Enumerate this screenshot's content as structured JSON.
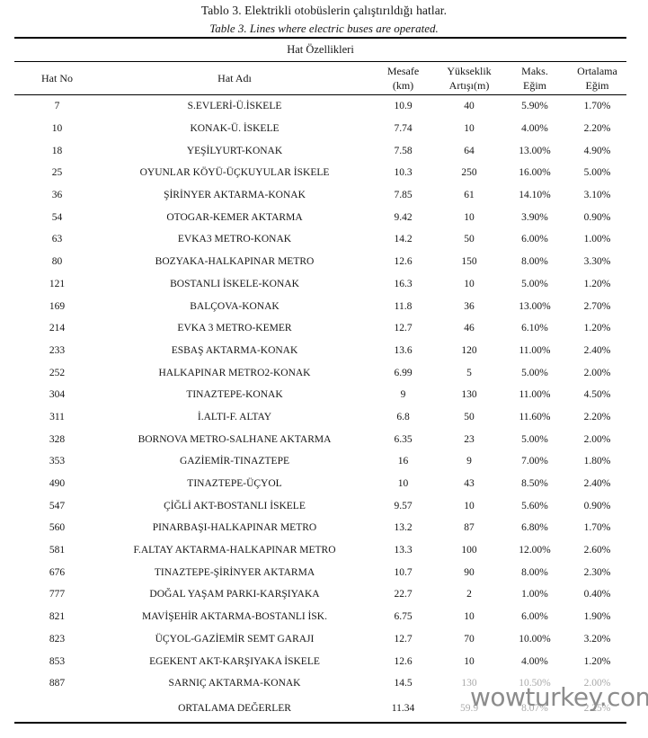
{
  "caption": {
    "title_tr": "Tablo 3. Elektrikli otobüslerin çalıştırıldığı hatlar.",
    "title_en": "Table 3. Lines where electric buses are operated."
  },
  "table": {
    "group_header": "Hat Özellikleri",
    "columns": [
      {
        "line1": "Hat No",
        "line2": ""
      },
      {
        "line1": "Hat Adı",
        "line2": ""
      },
      {
        "line1": "Mesafe",
        "line2": "(km)"
      },
      {
        "line1": "Yükseklik",
        "line2": "Artışı(m)"
      },
      {
        "line1": "Maks.",
        "line2": "Eğim"
      },
      {
        "line1": "Ortalama",
        "line2": "Eğim"
      }
    ],
    "rows": [
      [
        "7",
        "S.EVLERİ-Ü.İSKELE",
        "10.9",
        "40",
        "5.90%",
        "1.70%"
      ],
      [
        "10",
        "KONAK-Ü. İSKELE",
        "7.74",
        "10",
        "4.00%",
        "2.20%"
      ],
      [
        "18",
        "YEŞİLYURT-KONAK",
        "7.58",
        "64",
        "13.00%",
        "4.90%"
      ],
      [
        "25",
        "OYUNLAR KÖYÜ-ÜÇKUYULAR İSKELE",
        "10.3",
        "250",
        "16.00%",
        "5.00%"
      ],
      [
        "36",
        "ŞİRİNYER AKTARMA-KONAK",
        "7.85",
        "61",
        "14.10%",
        "3.10%"
      ],
      [
        "54",
        "OTOGAR-KEMER AKTARMA",
        "9.42",
        "10",
        "3.90%",
        "0.90%"
      ],
      [
        "63",
        "EVKA3 METRO-KONAK",
        "14.2",
        "50",
        "6.00%",
        "1.00%"
      ],
      [
        "80",
        "BOZYAKA-HALKAPINAR METRO",
        "12.6",
        "150",
        "8.00%",
        "3.30%"
      ],
      [
        "121",
        "BOSTANLI İSKELE-KONAK",
        "16.3",
        "10",
        "5.00%",
        "1.20%"
      ],
      [
        "169",
        "BALÇOVA-KONAK",
        "11.8",
        "36",
        "13.00%",
        "2.70%"
      ],
      [
        "214",
        "EVKA 3 METRO-KEMER",
        "12.7",
        "46",
        "6.10%",
        "1.20%"
      ],
      [
        "233",
        "ESBAŞ AKTARMA-KONAK",
        "13.6",
        "120",
        "11.00%",
        "2.40%"
      ],
      [
        "252",
        "HALKAPINAR METRO2-KONAK",
        "6.99",
        "5",
        "5.00%",
        "2.00%"
      ],
      [
        "304",
        "TINAZTEPE-KONAK",
        "9",
        "130",
        "11.00%",
        "4.50%"
      ],
      [
        "311",
        "İ.ALTI-F. ALTAY",
        "6.8",
        "50",
        "11.60%",
        "2.20%"
      ],
      [
        "328",
        "BORNOVA METRO-SALHANE AKTARMA",
        "6.35",
        "23",
        "5.00%",
        "2.00%"
      ],
      [
        "353",
        "GAZİEMİR-TINAZTEPE",
        "16",
        "9",
        "7.00%",
        "1.80%"
      ],
      [
        "490",
        "TINAZTEPE-ÜÇYOL",
        "10",
        "43",
        "8.50%",
        "2.40%"
      ],
      [
        "547",
        "ÇİĞLİ AKT-BOSTANLI İSKELE",
        "9.57",
        "10",
        "5.60%",
        "0.90%"
      ],
      [
        "560",
        "PINARBAŞI-HALKAPINAR METRO",
        "13.2",
        "87",
        "6.80%",
        "1.70%"
      ],
      [
        "581",
        "F.ALTAY AKTARMA-HALKAPINAR METRO",
        "13.3",
        "100",
        "12.00%",
        "2.60%"
      ],
      [
        "676",
        "TINAZTEPE-ŞİRİNYER AKTARMA",
        "10.7",
        "90",
        "8.00%",
        "2.30%"
      ],
      [
        "777",
        "DOĞAL YAŞAM PARKI-KARŞIYAKA",
        "22.7",
        "2",
        "1.00%",
        "0.40%"
      ],
      [
        "821",
        "MAVİŞEHİR AKTARMA-BOSTANLI İSK.",
        "6.75",
        "10",
        "6.00%",
        "1.90%"
      ],
      [
        "823",
        "ÜÇYOL-GAZİEMİR SEMT GARAJI",
        "12.7",
        "70",
        "10.00%",
        "3.20%"
      ],
      [
        "853",
        "EGEKENT AKT-KARŞIYAKA İSKELE",
        "12.6",
        "10",
        "4.00%",
        "1.20%"
      ],
      [
        "887",
        "SARNIÇ AKTARMA-KONAK",
        "14.5",
        "130",
        "10.50%",
        "2.00%"
      ]
    ],
    "summary": {
      "hat_no": "",
      "label": "ORTALAMA DEĞERLER",
      "mesafe": "11.34",
      "yukseklik": "59.9",
      "maks_egim": "8.07%",
      "ortalama_egim": "2.25%"
    }
  },
  "watermark": {
    "text": "wowturkey.com",
    "color": "#8c8c8c"
  }
}
